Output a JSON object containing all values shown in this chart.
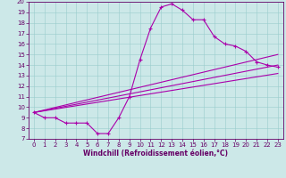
{
  "xlabel": "Windchill (Refroidissement éolien,°C)",
  "ylabel": "",
  "xlim": [
    -0.5,
    23.5
  ],
  "ylim": [
    7,
    20
  ],
  "xticks": [
    0,
    1,
    2,
    3,
    4,
    5,
    6,
    7,
    8,
    9,
    10,
    11,
    12,
    13,
    14,
    15,
    16,
    17,
    18,
    19,
    20,
    21,
    22,
    23
  ],
  "yticks": [
    7,
    8,
    9,
    10,
    11,
    12,
    13,
    14,
    15,
    16,
    17,
    18,
    19,
    20
  ],
  "bg_color": "#cce8e8",
  "line_color": "#aa00aa",
  "line1_x": [
    0,
    1,
    2,
    3,
    4,
    5,
    6,
    7,
    8,
    9,
    10,
    11,
    12,
    13,
    14,
    15,
    16,
    17,
    18,
    19,
    20,
    21,
    22,
    23
  ],
  "line1_y": [
    9.5,
    9.0,
    9.0,
    8.5,
    8.5,
    8.5,
    7.5,
    7.5,
    9.0,
    11.0,
    14.5,
    17.5,
    19.5,
    19.8,
    19.2,
    18.3,
    18.3,
    16.7,
    16.0,
    15.8,
    15.3,
    14.3,
    14.0,
    13.8
  ],
  "line2_x": [
    0,
    23
  ],
  "line2_y": [
    9.5,
    15.0
  ],
  "line3_x": [
    0,
    23
  ],
  "line3_y": [
    9.5,
    14.0
  ],
  "line4_x": [
    0,
    23
  ],
  "line4_y": [
    9.5,
    13.2
  ]
}
